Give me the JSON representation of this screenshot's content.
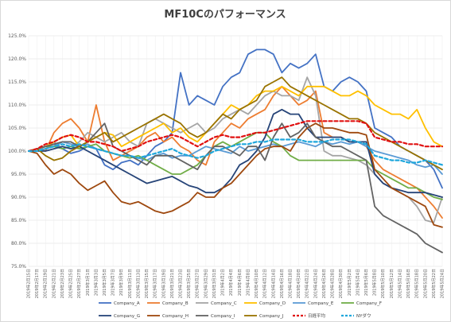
{
  "chart_data": {
    "type": "line",
    "title": "MF10Cのパフォーマンス",
    "ylim": [
      75,
      125
    ],
    "ytick_step": 5,
    "ytick_labels": [
      "75.0%",
      "80.0%",
      "85.0%",
      "90.0%",
      "95.0%",
      "100.0%",
      "105.0%",
      "110.0%",
      "115.0%",
      "120.0%",
      "125.0%"
    ],
    "x": [
      "2019年2月15日",
      "2019年2月17日",
      "2019年2月19日",
      "2019年2月21日",
      "2019年2月23日",
      "2019年2月25日",
      "2019年2月27日",
      "2019年3月1日",
      "2019年3月3日",
      "2019年3月5日",
      "2019年3月7日",
      "2019年3月9日",
      "2019年3月11日",
      "2019年3月13日",
      "2019年3月15日",
      "2019年3月17日",
      "2019年3月19日",
      "2019年3月21日",
      "2019年3月23日",
      "2019年3月25日",
      "2019年3月27日",
      "2019年3月29日",
      "2019年3月31日",
      "2019年4月2日",
      "2019年4月4日",
      "2019年4月6日",
      "2019年4月8日",
      "2019年4月10日",
      "2019年4月12日",
      "2019年4月14日",
      "2019年4月16日",
      "2019年4月18日",
      "2019年4月20日",
      "2019年4月22日",
      "2019年4月24日",
      "2019年4月26日",
      "2019年4月28日",
      "2019年4月30日",
      "2019年5月2日",
      "2019年5月4日",
      "2019年5月6日",
      "2019年5月8日",
      "2019年5月10日",
      "2019年5月12日",
      "2019年5月14日",
      "2019年5月16日",
      "2019年5月18日",
      "2019年5月20日",
      "2019年5月22日",
      "2019年5月24日"
    ],
    "grid": true,
    "legend_position": "bottom",
    "series": [
      {
        "name": "Company_A",
        "color": "#4472C4",
        "dash": false,
        "values": [
          100,
          100.5,
          101,
          101.5,
          100.5,
          99.5,
          100,
          101,
          100.5,
          97,
          96,
          97.5,
          98,
          97,
          99,
          101,
          102,
          104,
          117,
          110,
          112,
          111,
          110,
          114,
          116,
          117,
          121,
          122,
          122,
          121,
          117,
          119,
          118,
          119,
          121,
          114,
          113,
          115,
          116,
          115,
          113,
          105,
          104,
          103,
          101,
          100,
          99,
          98,
          96,
          92
        ]
      },
      {
        "name": "Company_B",
        "color": "#ED7D31",
        "dash": false,
        "values": [
          100,
          100.5,
          100,
          104,
          106,
          107,
          105,
          102,
          110,
          102,
          98,
          99,
          100,
          101,
          103,
          104,
          102,
          103,
          101,
          100,
          98,
          97,
          102,
          104,
          106,
          105,
          107,
          108,
          109,
          112,
          114,
          112,
          110,
          111,
          113,
          104,
          103,
          103,
          102,
          102,
          101,
          98,
          96,
          95,
          94,
          93,
          92,
          90,
          88,
          85.5
        ]
      },
      {
        "name": "Company_C",
        "color": "#A5A5A5",
        "dash": false,
        "values": [
          100,
          100,
          101,
          102,
          100.5,
          101,
          102,
          104,
          103,
          102,
          103,
          104,
          102,
          101,
          106,
          107,
          106,
          105,
          104,
          105,
          106,
          104,
          105,
          107,
          108,
          109,
          108,
          110,
          112,
          113,
          112,
          112,
          111,
          116,
          112,
          100,
          99,
          99,
          98.5,
          98,
          97,
          95,
          93,
          92,
          91,
          90,
          88,
          85,
          84.5,
          90
        ]
      },
      {
        "name": "Company_D",
        "color": "#FFC000",
        "dash": false,
        "values": [
          100,
          100.5,
          101,
          102,
          103,
          103.5,
          101,
          102,
          103,
          104,
          103.5,
          101,
          102,
          103,
          104,
          105,
          106,
          104,
          105,
          103,
          102,
          104,
          106,
          108,
          110,
          109,
          110,
          112,
          113,
          113,
          114,
          113,
          112,
          114,
          114,
          114,
          113,
          112,
          112,
          113,
          112,
          110,
          109,
          108,
          108,
          107,
          109,
          105,
          102,
          101
        ]
      },
      {
        "name": "Company_E",
        "color": "#5B9BD5",
        "dash": false,
        "values": [
          100,
          100,
          100.5,
          101,
          102,
          101.5,
          101,
          101.5,
          100.5,
          100,
          99.5,
          99,
          99,
          98.5,
          98,
          99,
          99.5,
          98.5,
          99,
          99,
          100,
          101,
          100.5,
          100,
          99.5,
          101,
          100,
          100.5,
          101,
          101.5,
          101,
          101.5,
          102,
          101.5,
          101,
          102,
          101.5,
          102,
          101.5,
          102,
          101,
          100,
          99.5,
          99,
          98.5,
          98,
          97,
          96.5,
          97,
          95
        ]
      },
      {
        "name": "Company_F",
        "color": "#70AD47",
        "dash": false,
        "values": [
          100,
          100.5,
          101,
          101,
          100.5,
          101,
          100.5,
          101,
          101.5,
          100,
          99.5,
          99,
          98.5,
          99,
          98,
          97,
          96,
          95,
          95,
          96,
          97,
          99,
          101,
          102,
          101,
          102,
          103,
          104,
          104,
          102,
          101,
          99,
          98,
          98,
          98,
          98,
          98,
          98,
          98,
          98,
          98,
          96,
          95,
          94,
          93,
          92,
          92,
          91,
          90,
          89.5
        ]
      },
      {
        "name": "Company_G",
        "color": "#264478",
        "dash": false,
        "values": [
          100,
          100,
          100,
          100.5,
          101,
          100.5,
          101,
          100,
          99,
          98,
          97,
          96,
          95,
          94,
          93,
          93.5,
          94,
          94.5,
          93.5,
          92.5,
          92,
          91,
          91,
          92,
          94,
          97,
          98,
          100,
          103,
          108,
          109,
          108,
          108,
          105,
          103,
          103,
          103,
          103,
          102,
          102,
          102,
          95,
          93,
          92,
          91.5,
          91,
          91,
          91,
          90.5,
          90
        ]
      },
      {
        "name": "Company_H",
        "color": "#9E480E",
        "dash": false,
        "values": [
          100,
          99.5,
          97,
          95,
          96,
          95,
          93,
          91.5,
          92.5,
          93.5,
          91,
          89,
          88.5,
          89,
          88,
          87,
          86.5,
          87,
          88,
          89,
          91,
          90,
          90,
          92,
          93,
          95,
          97,
          99,
          100.5,
          101,
          101,
          100,
          103,
          105,
          106,
          105,
          105,
          104.5,
          104,
          104,
          103.5,
          96,
          94,
          92,
          91,
          90,
          89,
          88,
          84,
          83.5
        ]
      },
      {
        "name": "Company_I",
        "color": "#636363",
        "dash": false,
        "values": [
          100,
          100.5,
          101,
          101.5,
          102,
          102,
          101,
          102,
          104,
          106,
          101,
          100,
          99,
          98,
          97,
          99,
          99,
          99,
          98,
          97,
          96,
          99,
          101,
          101,
          100,
          99,
          101,
          101,
          98,
          103,
          106,
          103,
          104,
          106,
          103,
          102,
          101,
          101,
          100,
          99,
          98,
          88,
          86,
          85,
          84,
          83,
          82,
          80,
          79,
          78
        ]
      },
      {
        "name": "Company_J",
        "color": "#997300",
        "dash": false,
        "values": [
          100,
          100.5,
          99,
          98,
          98.5,
          100,
          101,
          102,
          103,
          104,
          102,
          103,
          104,
          105,
          106,
          107,
          108,
          107,
          106,
          104,
          103,
          104,
          106,
          108,
          107,
          109,
          110,
          111,
          114,
          115,
          116,
          114,
          113,
          112,
          111,
          110,
          109,
          108,
          107,
          107,
          106,
          104,
          103,
          102,
          101,
          100,
          99,
          98,
          97,
          96
        ]
      },
      {
        "name": "日経平均",
        "color": "#E01010",
        "dash": true,
        "values": [
          100,
          100.5,
          101.5,
          102,
          103,
          103.5,
          103,
          102,
          102,
          101.5,
          101,
          100,
          100.5,
          101,
          102,
          102.5,
          103,
          103.5,
          103,
          102,
          101,
          102,
          103,
          103.5,
          103,
          103,
          103.5,
          104,
          104,
          104.5,
          105,
          105.5,
          106,
          106.5,
          106.5,
          106.5,
          106.5,
          106.5,
          106.5,
          106.5,
          106,
          103,
          102.5,
          102,
          102,
          101.5,
          101.5,
          101,
          101,
          101
        ]
      },
      {
        "name": "NYダウ",
        "color": "#1FA7DC",
        "dash": true,
        "values": [
          100,
          100,
          100.5,
          101,
          101.5,
          101,
          101.5,
          101,
          100.5,
          100,
          99.5,
          99,
          99,
          98.5,
          99,
          99.5,
          100,
          100.5,
          99.5,
          99,
          98.5,
          99,
          100,
          100.5,
          101,
          101.5,
          101.5,
          102,
          102,
          102.5,
          102.5,
          102.5,
          102.5,
          102,
          102,
          102,
          102.5,
          102.5,
          102.5,
          102,
          101.5,
          99,
          98.5,
          98,
          98,
          97.5,
          97.5,
          98,
          97.5,
          97
        ]
      }
    ]
  }
}
